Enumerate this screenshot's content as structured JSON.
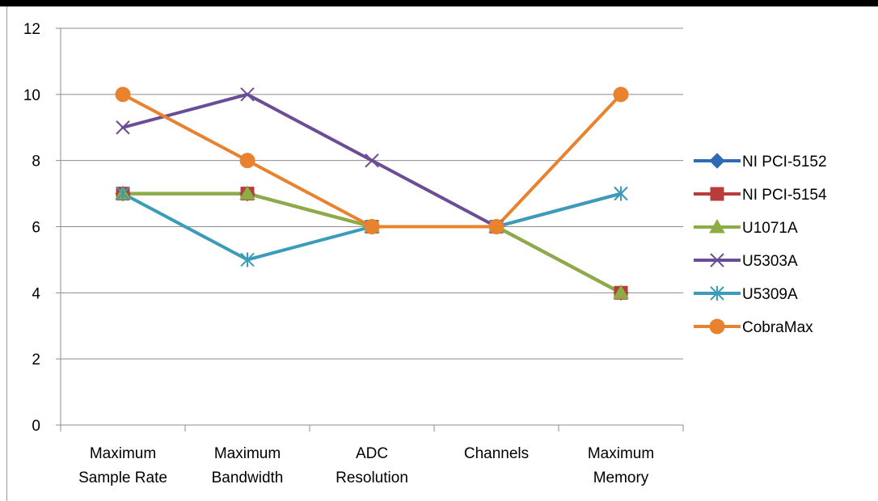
{
  "chart_data": {
    "type": "line",
    "categories": [
      [
        "Maximum",
        "Sample Rate"
      ],
      [
        "Maximum",
        "Bandwidth"
      ],
      [
        "ADC",
        "Resolution"
      ],
      [
        "Channels"
      ],
      [
        "Maximum",
        "Memory"
      ]
    ],
    "ylim": [
      0,
      12
    ],
    "yticks": [
      0,
      2,
      4,
      6,
      8,
      10,
      12
    ],
    "grid": true,
    "legend": "right",
    "series": [
      {
        "name": "NI PCI-5152",
        "color": "#2e6bb4",
        "marker": "diamond",
        "values": [
          7,
          7,
          6,
          6,
          4
        ]
      },
      {
        "name": "NI PCI-5154",
        "color": "#b83c3a",
        "marker": "square",
        "values": [
          7,
          7,
          6,
          6,
          4
        ]
      },
      {
        "name": "U1071A",
        "color": "#8cac44",
        "marker": "triangle",
        "values": [
          7,
          7,
          6,
          6,
          4
        ]
      },
      {
        "name": "U5303A",
        "color": "#6a4d96",
        "marker": "x",
        "values": [
          9,
          10,
          8,
          6,
          7
        ]
      },
      {
        "name": "U5309A",
        "color": "#3a9cb8",
        "marker": "star",
        "values": [
          7,
          5,
          6,
          6,
          7
        ]
      },
      {
        "name": "CobraMax",
        "color": "#e8822e",
        "marker": "circle",
        "values": [
          10,
          8,
          6,
          6,
          10
        ]
      }
    ]
  }
}
